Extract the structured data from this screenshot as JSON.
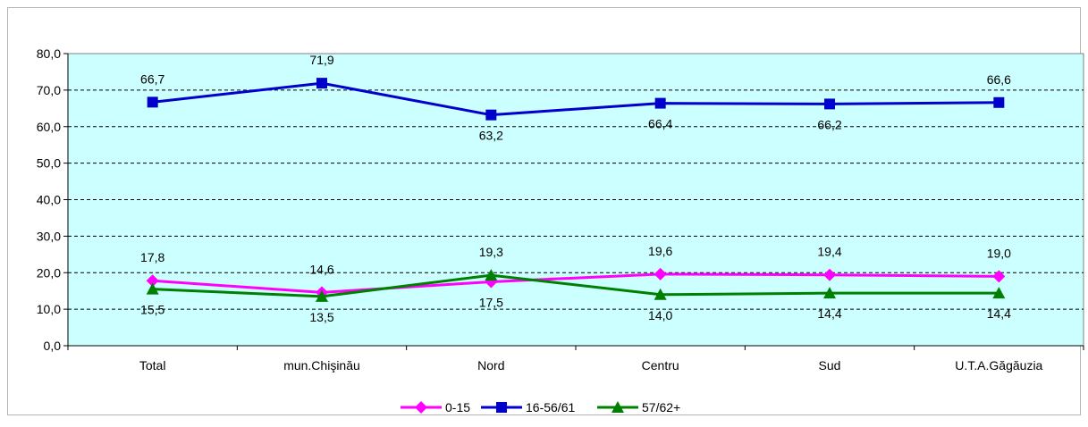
{
  "chart_data": {
    "type": "line",
    "title": "",
    "xlabel": "",
    "ylabel": "",
    "categories": [
      "Total",
      "mun.Chişinău",
      "Nord",
      "Centru",
      "Sud",
      "U.T.A.Găgăuzia"
    ],
    "ylim": [
      0,
      80
    ],
    "yticks": [
      "0,0",
      "10,0",
      "20,0",
      "30,0",
      "40,0",
      "50,0",
      "60,0",
      "70,0",
      "80,0"
    ],
    "grid": true,
    "plot_background": "#ccffff",
    "legend_position": "bottom",
    "series": [
      {
        "name": "0-15",
        "color": "#ff00ff",
        "marker": "diamond",
        "values": [
          17.8,
          14.6,
          17.5,
          19.6,
          19.4,
          19.0
        ],
        "labels": [
          "17,8",
          "14,6",
          "17,5",
          "19,6",
          "19,4",
          "19,0"
        ]
      },
      {
        "name": "16-56/61",
        "color": "#0000cc",
        "marker": "square",
        "values": [
          66.7,
          71.9,
          63.2,
          66.4,
          66.2,
          66.6
        ],
        "labels": [
          "66,7",
          "71,9",
          "63,2",
          "66,4",
          "66,2",
          "66,6"
        ]
      },
      {
        "name": "57/62+",
        "color": "#008000",
        "marker": "triangle",
        "values": [
          15.5,
          13.5,
          19.3,
          14.0,
          14.4,
          14.4
        ],
        "labels": [
          "15,5",
          "13,5",
          "19,3",
          "14,0",
          "14,4",
          "14,4"
        ]
      }
    ]
  }
}
